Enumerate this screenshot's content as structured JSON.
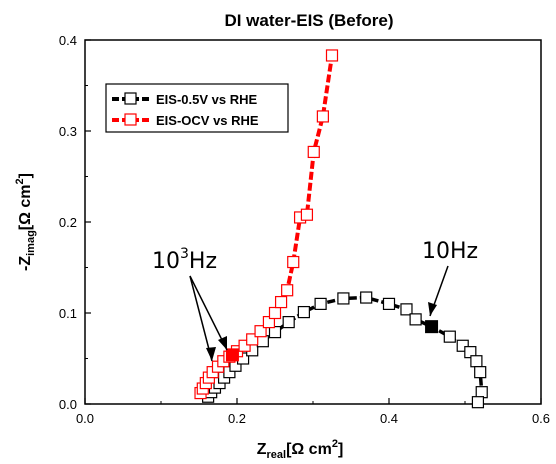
{
  "chart_data": {
    "type": "scatter",
    "title": "DI water-EIS (Before)",
    "xlabel": {
      "main": "Z",
      "sub": "real",
      "unit_open": "[Ω  cm",
      "unit_sup": "2",
      "unit_close": "]"
    },
    "ylabel": {
      "main": "-Z",
      "sub": "imag",
      "unit_open": "[Ω cm",
      "unit_sup": "2",
      "unit_close": "]"
    },
    "xlim": [
      0.0,
      0.6
    ],
    "ylim": [
      0.0,
      0.4
    ],
    "xticks": [
      0.0,
      0.2,
      0.4,
      0.6
    ],
    "yticks": [
      0.0,
      0.1,
      0.2,
      0.3,
      0.4
    ],
    "xtick_labels": [
      "0.0",
      "0.2",
      "0.4",
      "0.6"
    ],
    "ytick_labels": [
      "0.0",
      "0.1",
      "0.2",
      "0.3",
      "0.4"
    ],
    "legend": "top-left",
    "grid": false,
    "series": [
      {
        "name": "EIS-0.5V vs RHE",
        "color": "#000000",
        "x": [
          0.162,
          0.166,
          0.171,
          0.177,
          0.183,
          0.19,
          0.198,
          0.208,
          0.22,
          0.234,
          0.25,
          0.268,
          0.288,
          0.31,
          0.34,
          0.37,
          0.4,
          0.423,
          0.435,
          0.456,
          0.48,
          0.497,
          0.507,
          0.515,
          0.52,
          0.522,
          0.517
        ],
        "y": [
          0.008,
          0.013,
          0.018,
          0.023,
          0.029,
          0.035,
          0.042,
          0.05,
          0.059,
          0.069,
          0.079,
          0.09,
          0.101,
          0.11,
          0.116,
          0.117,
          0.11,
          0.104,
          0.093,
          0.085,
          0.074,
          0.064,
          0.057,
          0.047,
          0.035,
          0.013,
          0.002
        ]
      },
      {
        "name": "EIS-OCV vs RHE",
        "color": "#ff0000",
        "x": [
          0.152,
          0.155,
          0.159,
          0.163,
          0.168,
          0.175,
          0.182,
          0.19,
          0.2,
          0.21,
          0.22,
          0.231,
          0.242,
          0.25,
          0.258,
          0.266,
          0.274,
          0.283,
          0.292,
          0.301,
          0.313,
          0.325
        ],
        "y": [
          0.012,
          0.017,
          0.023,
          0.029,
          0.035,
          0.041,
          0.047,
          0.052,
          0.058,
          0.064,
          0.071,
          0.08,
          0.09,
          0.1,
          0.112,
          0.125,
          0.156,
          0.205,
          0.208,
          0.277,
          0.316,
          0.383
        ]
      }
    ],
    "highlighted_points": [
      {
        "series": "EIS-0.5V vs RHE",
        "x": 0.456,
        "y": 0.085,
        "label": "10Hz"
      },
      {
        "series": "EIS-OCV vs RHE",
        "x": 0.194,
        "y": 0.054,
        "label": "10³Hz"
      }
    ],
    "annotations": {
      "hz1000_base": "10",
      "hz1000_sup": "3",
      "hz1000_unit": "Hz",
      "hz10": "10Hz"
    }
  }
}
